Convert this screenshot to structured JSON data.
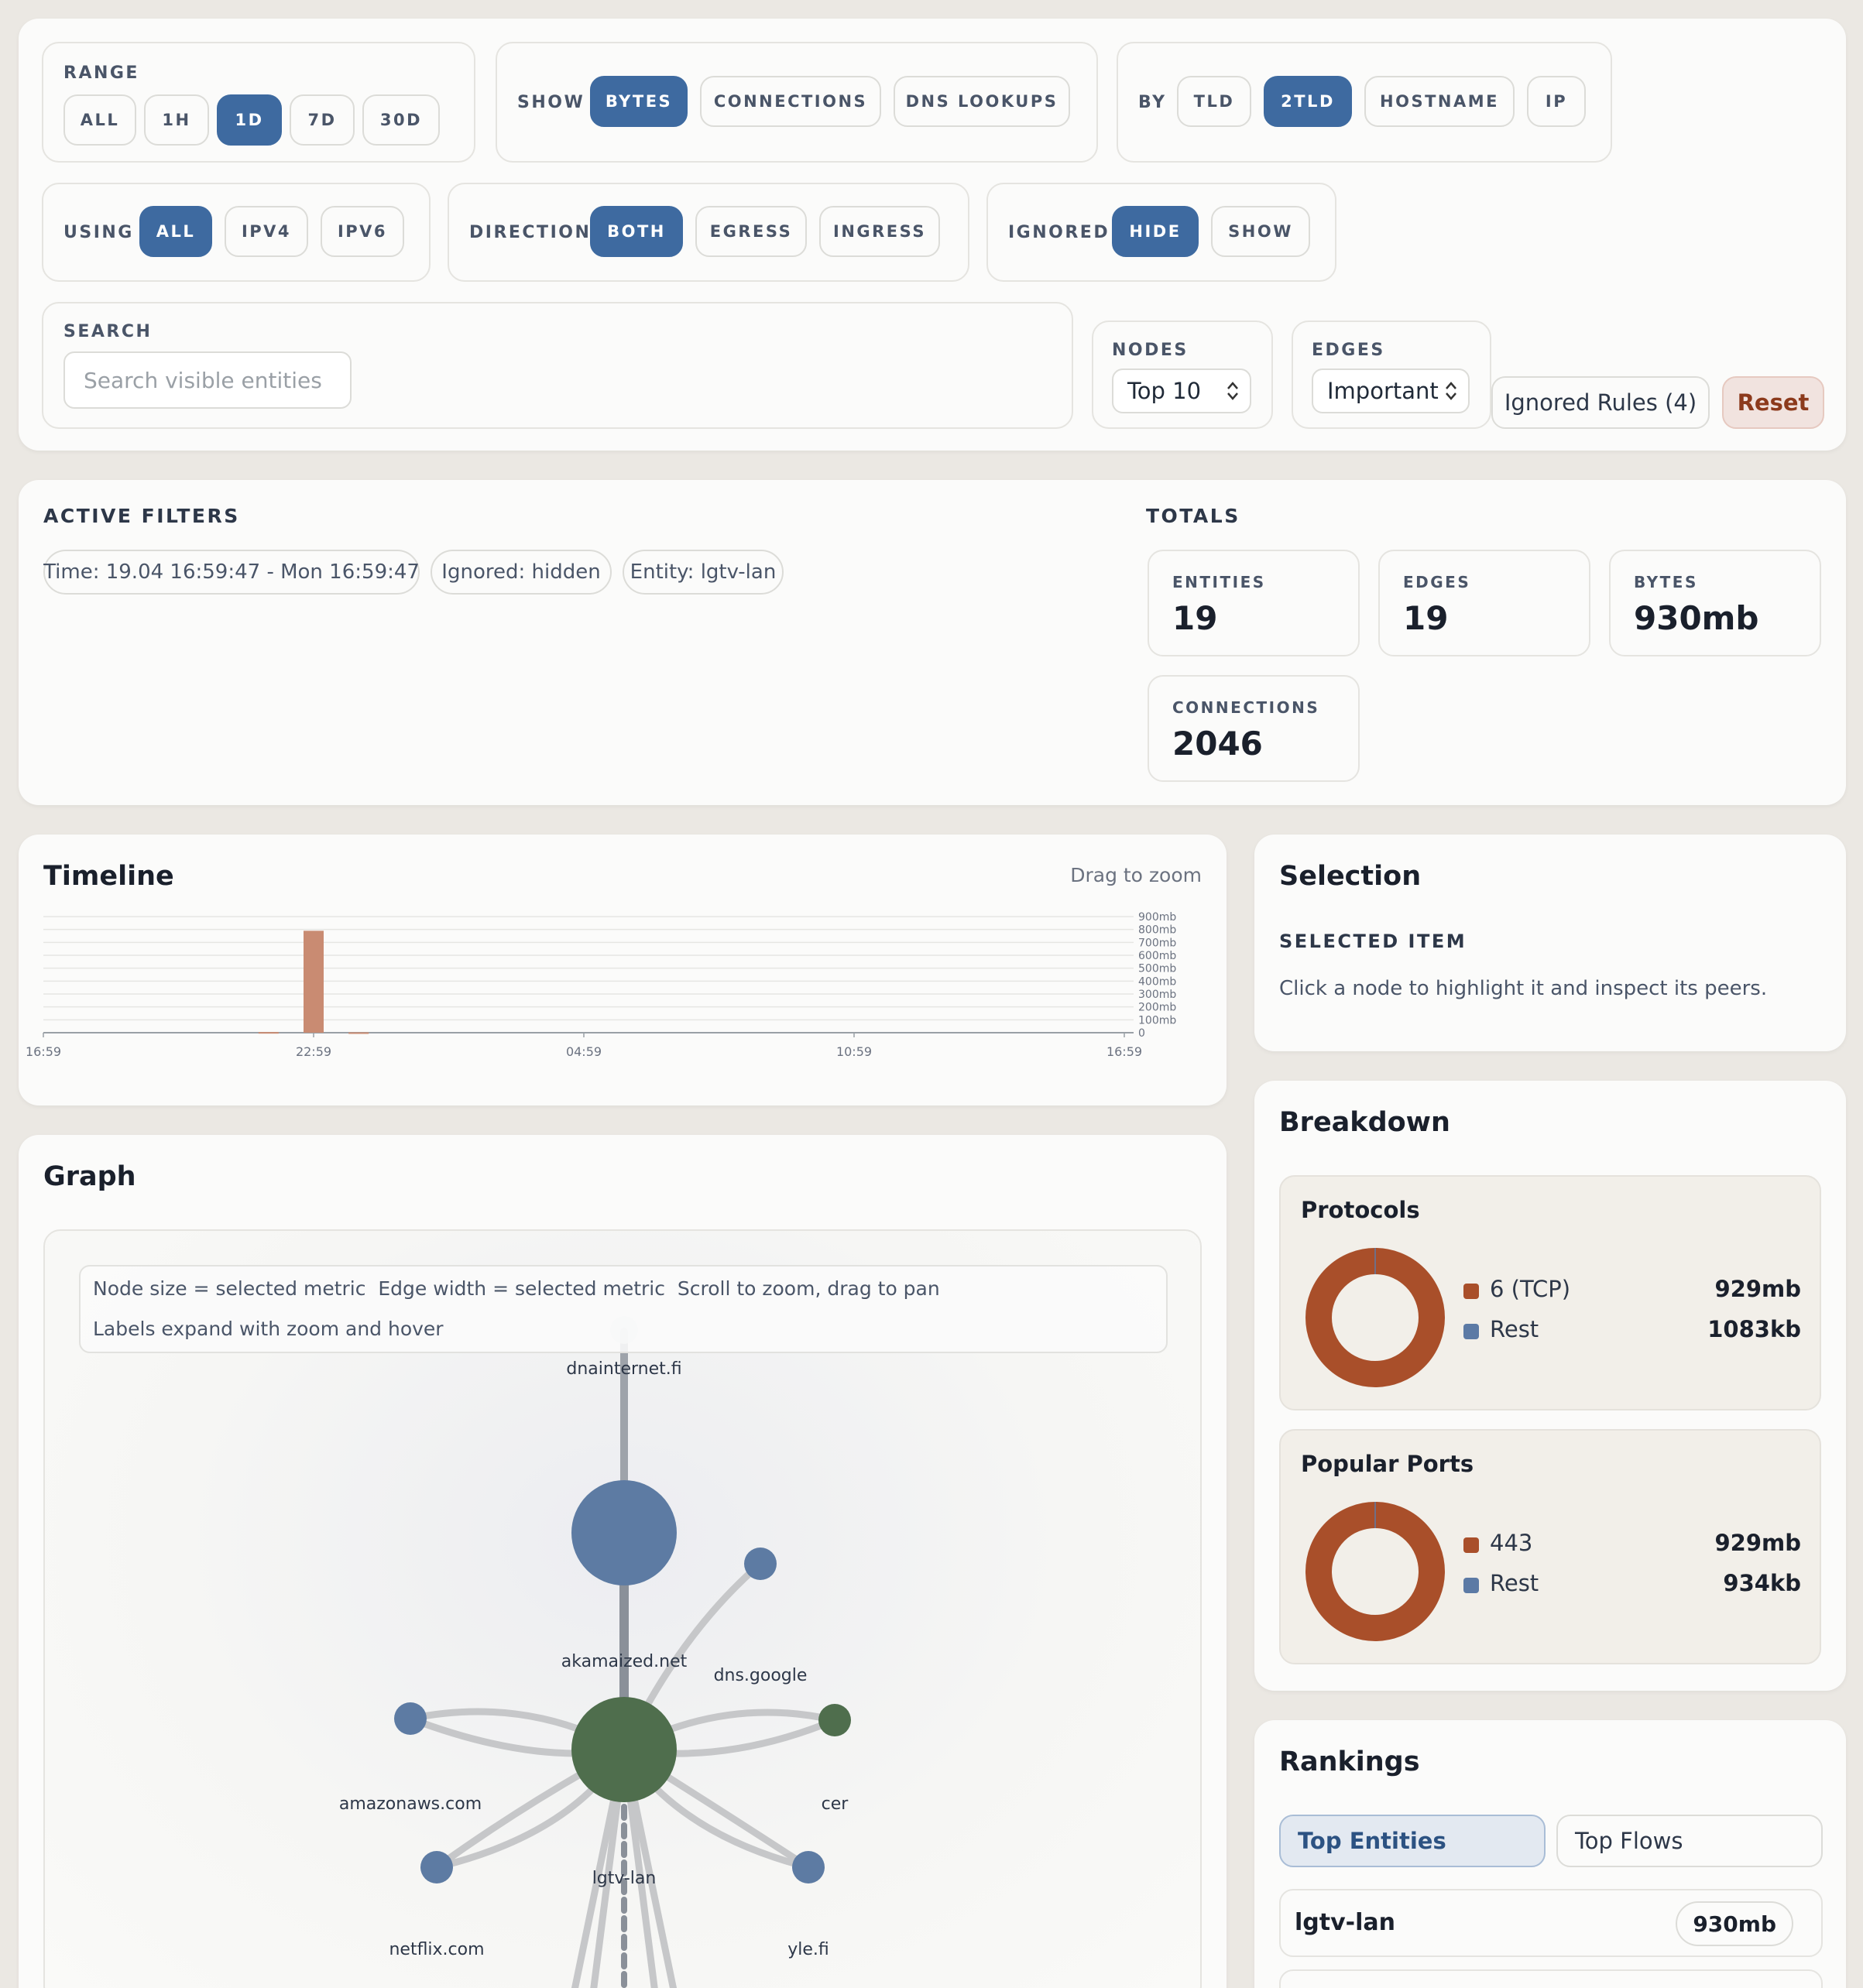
{
  "filters": {
    "range": {
      "label": "RANGE",
      "options": [
        "ALL",
        "1H",
        "1D",
        "7D",
        "30D"
      ]
    },
    "show": {
      "label": "SHOW",
      "options": [
        "BYTES",
        "CONNECTIONS",
        "DNS LOOKUPS"
      ]
    },
    "by": {
      "label": "BY",
      "options": [
        "TLD",
        "2TLD",
        "HOSTNAME",
        "IP"
      ]
    },
    "using": {
      "label": "USING",
      "options": [
        "ALL",
        "IPV4",
        "IPV6"
      ]
    },
    "direction": {
      "label": "DIRECTION",
      "options": [
        "BOTH",
        "EGRESS",
        "INGRESS"
      ]
    },
    "ignored": {
      "label": "IGNORED",
      "options": [
        "HIDE",
        "SHOW"
      ]
    },
    "search": {
      "label": "SEARCH",
      "placeholder": "Search visible entities"
    },
    "nodes": {
      "label": "NODES",
      "value": "Top 10"
    },
    "edges": {
      "label": "EDGES",
      "value": "Important"
    },
    "ignored_rules": "Ignored Rules (4)",
    "reset": "Reset"
  },
  "active_filters": {
    "title": "ACTIVE FILTERS",
    "chips": [
      "Time: 19.04 16:59:47 - Mon 16:59:47",
      "Ignored: hidden",
      "Entity: lgtv-lan"
    ]
  },
  "totals": {
    "title": "TOTALS",
    "entities_label": "ENTITIES",
    "entities": "19",
    "edges_label": "EDGES",
    "edges": "19",
    "bytes_label": "BYTES",
    "bytes": "930mb",
    "connections_label": "CONNECTIONS",
    "connections": "2046"
  },
  "timeline": {
    "title": "Timeline",
    "hint": "Drag to zoom"
  },
  "chart_data": {
    "type": "bar",
    "title": "Timeline",
    "x_ticks": [
      "16:59",
      "22:59",
      "04:59",
      "10:59",
      "16:59"
    ],
    "y_ticks": [
      "900mb",
      "800mb",
      "700mb",
      "600mb",
      "500mb",
      "400mb",
      "300mb",
      "200mb",
      "100mb",
      "0"
    ],
    "ylim": [
      0,
      900
    ],
    "bars": [
      {
        "time": "21:59",
        "value": 5
      },
      {
        "time": "22:59",
        "value": 790
      },
      {
        "time": "23:59",
        "value": 3
      }
    ]
  },
  "selection": {
    "title": "Selection",
    "subtitle": "SELECTED ITEM",
    "hint": "Click a node to highlight it and inspect its peers."
  },
  "breakdown": {
    "title": "Breakdown",
    "protocols": {
      "title": "Protocols",
      "items": [
        {
          "name": "6 (TCP)",
          "value": "929mb",
          "color": "#a94f2a"
        },
        {
          "name": "Rest",
          "value": "1083kb",
          "color": "#5c7aa5"
        }
      ]
    },
    "ports": {
      "title": "Popular Ports",
      "items": [
        {
          "name": "443",
          "value": "929mb",
          "color": "#a94f2a"
        },
        {
          "name": "Rest",
          "value": "934kb",
          "color": "#5c7aa5"
        }
      ]
    }
  },
  "graph": {
    "title": "Graph",
    "legend_line1": "Node size = selected metric  Edge width = selected metric  Scroll to zoom, drag to pan",
    "legend_line2": "Labels expand with zoom and hover",
    "nodes": [
      "dnainternet.fi",
      "akamaized.net",
      "dns.google",
      "amazonaws.com",
      "cer",
      "lgtv-lan",
      "netflix.com",
      "yle.fi"
    ]
  },
  "rankings": {
    "title": "Rankings",
    "tabs": [
      "Top Entities",
      "Top Flows"
    ],
    "rows": [
      {
        "name": "lgtv-lan",
        "value": "930mb"
      }
    ]
  }
}
